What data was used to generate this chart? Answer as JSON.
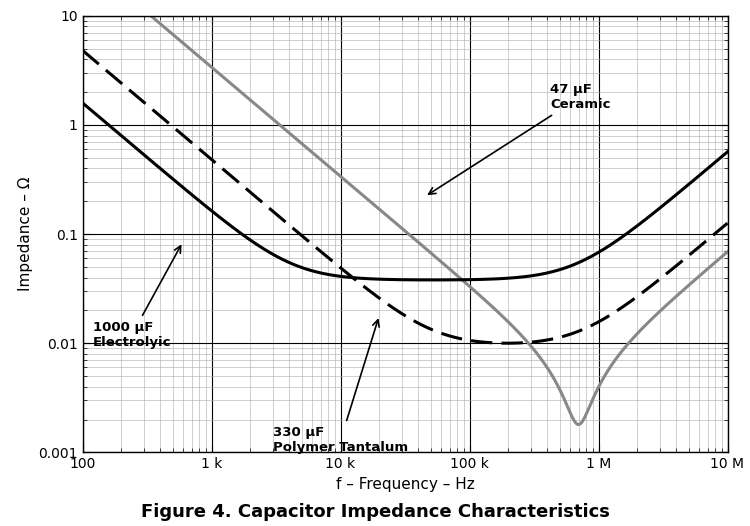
{
  "title": "Figure 4. Capacitor Impedance Characteristics",
  "xlabel": "f – Frequency – Hz",
  "ylabel": "Impedance – Ω",
  "xmin": 100,
  "xmax": 10000000.0,
  "ymin": 0.001,
  "ymax": 10,
  "curves": {
    "electrolytic": {
      "color": "#000000",
      "linestyle": "solid",
      "linewidth": 2.2,
      "C": 0.001,
      "ESR": 0.038,
      "L": 9e-09
    },
    "polymer_tantalum": {
      "color": "#000000",
      "linestyle": "dashed",
      "linewidth": 2.2,
      "C": 0.00033,
      "ESR": 0.01,
      "L": 2e-09
    },
    "ceramic": {
      "color": "#888888",
      "linestyle": "solid",
      "linewidth": 2.2,
      "C": 4.7e-05,
      "ESR": 0.0018,
      "L": 1.1e-09
    }
  },
  "background_color": "#ffffff",
  "major_grid_color": "#000000",
  "minor_grid_color": "#aaaaaa",
  "tick_label_fontsize": 10,
  "axis_label_fontsize": 11,
  "title_fontsize": 13
}
